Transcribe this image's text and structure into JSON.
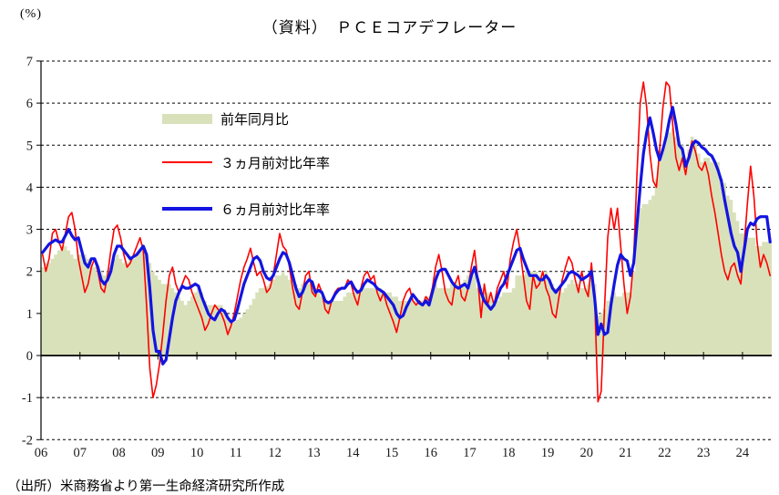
{
  "page": {
    "unit_label": "(%)",
    "title": "（資料）　ＰＣＥコアデフレーター",
    "source": "（出所）米商務省より第一生命経済研究所作成"
  },
  "legend": {
    "items": [
      {
        "label": "前年同月比",
        "type": "area",
        "color": "#d9e1ba"
      },
      {
        "label": "３ヵ月前対比年率",
        "type": "line",
        "color": "#fe0000"
      },
      {
        "label": "６ヵ月前対比年率",
        "type": "line",
        "color": "#1414e0"
      }
    ]
  },
  "chart_data": {
    "type": "area",
    "subtype": "monthly time series combo (stepped area + two lines)",
    "title": "（資料）　ＰＣＥコアデフレーター",
    "xlabel": "",
    "ylabel": "(%)",
    "x_start": "2006-01",
    "x_end": "2024-09",
    "frequency": "monthly",
    "x_tick_labels": [
      "06",
      "07",
      "08",
      "09",
      "10",
      "11",
      "12",
      "13",
      "14",
      "15",
      "16",
      "17",
      "18",
      "19",
      "20",
      "21",
      "22",
      "23",
      "24"
    ],
    "ylim": [
      -2,
      7
    ],
    "y_ticks": [
      7,
      6,
      5,
      4,
      3,
      2,
      1,
      0,
      -1,
      -2
    ],
    "grid": "horizontal dashed black, zero axis solid",
    "legend_position": "inside top-left",
    "colors": {
      "area": "#d9e1ba",
      "line_3m": "#fe0000",
      "line_6m": "#1414e0",
      "grid": "#000000"
    },
    "series": [
      {
        "name": "前年同月比",
        "type": "area",
        "color": "#d9e1ba",
        "values": [
          2.1,
          2.2,
          2.2,
          2.3,
          2.4,
          2.5,
          2.6,
          2.6,
          2.5,
          2.4,
          2.3,
          2.4,
          2.4,
          2.4,
          2.3,
          2.2,
          2.1,
          2.0,
          2.0,
          1.9,
          2.0,
          2.1,
          2.3,
          2.4,
          2.3,
          2.2,
          2.2,
          2.3,
          2.3,
          2.4,
          2.5,
          2.5,
          2.4,
          2.2,
          2.0,
          1.9,
          1.8,
          1.7,
          1.7,
          1.7,
          1.6,
          1.5,
          1.4,
          1.3,
          1.2,
          1.3,
          1.4,
          1.5,
          1.6,
          1.5,
          1.3,
          1.2,
          1.2,
          1.2,
          1.2,
          1.2,
          1.1,
          0.9,
          0.8,
          0.8,
          0.85,
          0.9,
          1.0,
          1.1,
          1.2,
          1.35,
          1.5,
          1.6,
          1.6,
          1.65,
          1.7,
          1.8,
          1.9,
          1.9,
          2.0,
          1.9,
          1.8,
          1.8,
          1.7,
          1.6,
          1.7,
          1.7,
          1.7,
          1.7,
          1.6,
          1.5,
          1.4,
          1.3,
          1.3,
          1.3,
          1.3,
          1.3,
          1.3,
          1.4,
          1.5,
          1.5,
          1.5,
          1.5,
          1.6,
          1.6,
          1.6,
          1.6,
          1.6,
          1.6,
          1.6,
          1.5,
          1.5,
          1.5,
          1.4,
          1.4,
          1.3,
          1.3,
          1.3,
          1.3,
          1.3,
          1.3,
          1.3,
          1.3,
          1.4,
          1.4,
          1.6,
          1.7,
          1.6,
          1.6,
          1.6,
          1.6,
          1.7,
          1.7,
          1.7,
          1.7,
          1.8,
          1.9,
          1.9,
          1.9,
          1.6,
          1.6,
          1.5,
          1.5,
          1.4,
          1.3,
          1.3,
          1.4,
          1.5,
          1.5,
          1.5,
          1.6,
          1.9,
          1.9,
          1.9,
          2.0,
          2.0,
          2.0,
          2.0,
          1.9,
          1.9,
          2.0,
          1.8,
          1.7,
          1.6,
          1.6,
          1.5,
          1.6,
          1.7,
          1.8,
          1.7,
          1.7,
          1.6,
          1.6,
          1.7,
          1.8,
          1.7,
          0.95,
          1.0,
          1.1,
          1.3,
          1.4,
          1.5,
          1.4,
          1.4,
          1.5,
          1.5,
          1.5,
          2.0,
          3.1,
          3.5,
          3.6,
          3.6,
          3.7,
          3.8,
          4.2,
          4.7,
          4.9,
          5.2,
          5.3,
          5.4,
          5.2,
          5.1,
          5.0,
          4.7,
          4.9,
          5.2,
          5.1,
          4.8,
          4.6,
          4.7,
          4.7,
          4.6,
          4.6,
          4.6,
          4.2,
          4.1,
          3.8,
          3.7,
          3.4,
          3.2,
          2.9,
          2.9,
          2.8,
          2.8,
          2.8,
          2.6,
          2.6,
          2.7,
          2.7,
          2.7
        ]
      },
      {
        "name": "３ヵ月前対比年率",
        "type": "line",
        "color": "#fe0000",
        "width": 1.6,
        "values": [
          2.4,
          2.0,
          2.3,
          2.9,
          3.0,
          2.7,
          2.5,
          2.9,
          3.3,
          3.4,
          3.0,
          2.3,
          1.9,
          1.5,
          1.7,
          2.1,
          2.3,
          2.0,
          1.6,
          1.5,
          1.9,
          2.5,
          3.0,
          3.1,
          2.8,
          2.4,
          2.1,
          2.2,
          2.4,
          2.6,
          2.8,
          2.5,
          1.2,
          -0.3,
          -1.0,
          -0.7,
          -0.2,
          0.5,
          1.3,
          1.9,
          2.1,
          1.7,
          1.5,
          1.7,
          1.9,
          1.8,
          1.5,
          1.3,
          1.1,
          0.9,
          0.6,
          0.75,
          1.0,
          1.2,
          1.1,
          1.0,
          0.8,
          0.5,
          0.7,
          1.0,
          1.4,
          1.8,
          2.1,
          2.3,
          2.55,
          2.2,
          1.9,
          2.0,
          1.8,
          1.5,
          1.6,
          1.9,
          2.4,
          2.9,
          2.6,
          2.5,
          2.1,
          1.6,
          1.2,
          1.1,
          1.5,
          1.9,
          2.0,
          1.5,
          1.4,
          1.7,
          1.5,
          1.1,
          1.0,
          1.3,
          1.5,
          1.6,
          1.6,
          1.6,
          1.8,
          1.7,
          1.4,
          1.2,
          1.6,
          1.9,
          2.0,
          1.8,
          1.9,
          1.5,
          1.3,
          1.5,
          1.2,
          1.0,
          0.8,
          0.55,
          0.9,
          1.3,
          1.5,
          1.6,
          1.3,
          1.2,
          1.3,
          1.2,
          1.4,
          1.3,
          1.6,
          2.1,
          2.4,
          2.0,
          1.5,
          1.3,
          1.2,
          1.7,
          1.9,
          1.4,
          1.3,
          1.6,
          2.1,
          2.5,
          1.8,
          0.9,
          1.7,
          1.2,
          1.5,
          1.2,
          1.6,
          1.8,
          2.0,
          1.6,
          2.3,
          2.7,
          3.0,
          2.5,
          1.9,
          1.3,
          1.1,
          1.9,
          1.6,
          1.7,
          2.0,
          1.6,
          1.4,
          1.0,
          0.9,
          1.4,
          1.8,
          2.1,
          2.35,
          2.2,
          1.8,
          1.5,
          2.0,
          1.6,
          1.4,
          2.2,
          1.3,
          -1.1,
          -0.85,
          1.1,
          2.8,
          3.5,
          3.0,
          3.5,
          2.6,
          1.7,
          1.0,
          1.4,
          2.3,
          4.3,
          6.0,
          6.5,
          5.9,
          4.8,
          4.15,
          4.0,
          4.9,
          5.9,
          6.5,
          6.4,
          5.5,
          4.7,
          4.4,
          4.7,
          4.3,
          4.8,
          5.1,
          4.85,
          4.5,
          4.4,
          4.6,
          4.3,
          3.8,
          3.4,
          2.9,
          2.4,
          2.0,
          1.8,
          2.1,
          2.2,
          1.9,
          1.7,
          2.6,
          3.6,
          4.5,
          3.8,
          2.7,
          2.1,
          2.4,
          2.2,
          1.9
        ]
      },
      {
        "name": "６ヵ月前対比年率",
        "type": "line",
        "color": "#1414e0",
        "width": 3.2,
        "values": [
          2.45,
          2.55,
          2.65,
          2.7,
          2.75,
          2.7,
          2.7,
          2.85,
          3.0,
          2.85,
          2.75,
          2.8,
          2.5,
          2.2,
          2.1,
          2.3,
          2.3,
          2.1,
          1.8,
          1.7,
          1.8,
          2.0,
          2.4,
          2.6,
          2.6,
          2.5,
          2.4,
          2.3,
          2.35,
          2.4,
          2.5,
          2.6,
          2.4,
          1.6,
          0.6,
          0.1,
          0.1,
          -0.2,
          -0.1,
          0.4,
          0.9,
          1.3,
          1.5,
          1.65,
          1.6,
          1.6,
          1.65,
          1.7,
          1.65,
          1.4,
          1.2,
          1.0,
          0.9,
          0.85,
          1.0,
          1.1,
          1.05,
          0.9,
          0.8,
          0.85,
          1.1,
          1.4,
          1.7,
          1.9,
          2.1,
          2.3,
          2.35,
          2.25,
          2.0,
          1.85,
          1.8,
          1.9,
          2.1,
          2.3,
          2.45,
          2.4,
          2.2,
          1.9,
          1.6,
          1.4,
          1.5,
          1.7,
          1.8,
          1.75,
          1.5,
          1.55,
          1.5,
          1.3,
          1.25,
          1.3,
          1.45,
          1.55,
          1.6,
          1.6,
          1.7,
          1.75,
          1.6,
          1.5,
          1.55,
          1.7,
          1.8,
          1.75,
          1.7,
          1.6,
          1.55,
          1.5,
          1.4,
          1.3,
          1.2,
          1.0,
          0.9,
          0.95,
          1.15,
          1.3,
          1.45,
          1.35,
          1.25,
          1.2,
          1.3,
          1.2,
          1.5,
          1.8,
          2.0,
          2.05,
          2.05,
          1.9,
          1.75,
          1.65,
          1.6,
          1.65,
          1.7,
          1.6,
          1.9,
          2.1,
          1.8,
          1.5,
          1.3,
          1.2,
          1.1,
          1.2,
          1.4,
          1.6,
          1.7,
          1.9,
          2.1,
          2.3,
          2.5,
          2.55,
          2.3,
          2.1,
          1.9,
          1.9,
          1.9,
          1.8,
          1.8,
          1.9,
          1.8,
          1.6,
          1.5,
          1.6,
          1.7,
          1.8,
          1.95,
          2.0,
          1.95,
          1.9,
          1.8,
          1.85,
          1.9,
          2.0,
          1.35,
          0.5,
          0.75,
          0.5,
          0.55,
          1.2,
          1.7,
          2.15,
          2.4,
          2.3,
          2.25,
          1.9,
          2.2,
          3.1,
          4.0,
          4.8,
          5.3,
          5.65,
          5.3,
          4.9,
          4.65,
          4.9,
          5.2,
          5.6,
          5.9,
          5.5,
          5.0,
          4.9,
          4.5,
          4.7,
          5.0,
          5.1,
          5.05,
          4.95,
          4.9,
          4.8,
          4.75,
          4.6,
          4.4,
          4.15,
          3.7,
          3.3,
          2.9,
          2.6,
          2.45,
          2.0,
          2.5,
          3.0,
          3.15,
          3.1,
          3.25,
          3.3,
          3.3,
          3.3,
          2.7
        ]
      }
    ]
  }
}
